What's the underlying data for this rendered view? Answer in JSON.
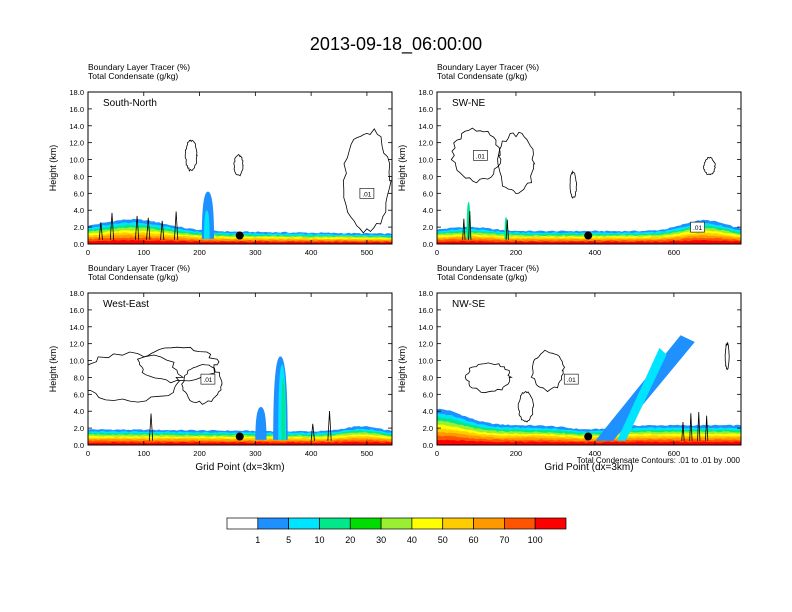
{
  "title": "2013-09-18_06:00:00",
  "colorbar": {
    "levels": [
      "1",
      "5",
      "10",
      "20",
      "30",
      "40",
      "50",
      "60",
      "70",
      "100"
    ],
    "colors": [
      "#ffffff",
      "#1e90ff",
      "#00e5ff",
      "#00e88a",
      "#00dd00",
      "#9bef33",
      "#ffff00",
      "#ffcc00",
      "#ff9900",
      "#ff5500",
      "#ff0000"
    ]
  },
  "contour_note": "Total Condensate Contours: .01 to .01 by .000",
  "chart_data": [
    {
      "type": "heatmap",
      "id": "sn",
      "label": "South-North",
      "header": [
        "Boundary Layer Tracer   (%)",
        "Total Condensate   (g/kg)"
      ],
      "ylabel": "Height (km)",
      "xlabel": "",
      "xlim": [
        0,
        545
      ],
      "ylim": [
        0,
        18
      ],
      "xticks": [
        "0",
        "100",
        "200",
        "300",
        "400",
        "500"
      ],
      "yticks": [
        "0.0",
        "2.0",
        "4.0",
        "6.0",
        "8.0",
        "10.0",
        "12.0",
        "14.0",
        "16.0",
        "18.0"
      ],
      "marker": [
        272,
        1.0
      ],
      "contour_labels": [
        {
          "text": ".01",
          "x": 500,
          "y": 6.0
        }
      ]
    },
    {
      "type": "heatmap",
      "id": "swne",
      "label": "SW-NE",
      "header": [
        "Boundary Layer Tracer   (%)",
        "Total Condensate   (g/kg)"
      ],
      "ylabel": "Height (km)",
      "xlabel": "",
      "xlim": [
        0,
        770
      ],
      "ylim": [
        0,
        18
      ],
      "xticks": [
        "0",
        "200",
        "400",
        "600"
      ],
      "yticks": [
        "0.0",
        "2.0",
        "4.0",
        "6.0",
        "8.0",
        "10.0",
        "12.0",
        "14.0",
        "16.0",
        "18.0"
      ],
      "marker": [
        383,
        1.0
      ],
      "contour_labels": [
        {
          "text": ".01",
          "x": 110,
          "y": 10.5
        },
        {
          "text": ".01",
          "x": 660,
          "y": 2.0
        }
      ]
    },
    {
      "type": "heatmap",
      "id": "we",
      "label": "West-East",
      "header": [
        "Boundary Layer Tracer   (%)",
        "Total Condensate   (g/kg)"
      ],
      "ylabel": "Height (km)",
      "xlabel": "Grid Point (dx=3km)",
      "xlim": [
        0,
        545
      ],
      "ylim": [
        0,
        18
      ],
      "xticks": [
        "0",
        "100",
        "200",
        "300",
        "400",
        "500"
      ],
      "yticks": [
        "0.0",
        "2.0",
        "4.0",
        "6.0",
        "8.0",
        "10.0",
        "12.0",
        "14.0",
        "16.0",
        "18.0"
      ],
      "marker": [
        272,
        1.0
      ],
      "contour_labels": [
        {
          "text": ".01",
          "x": 215,
          "y": 7.8
        }
      ]
    },
    {
      "type": "heatmap",
      "id": "nwse",
      "label": "NW-SE",
      "header": [
        "Boundary Layer Tracer   (%)",
        "Total Condensate   (g/kg)"
      ],
      "ylabel": "Height (km)",
      "xlabel": "Grid Point (dx=3km)",
      "xlim": [
        0,
        770
      ],
      "ylim": [
        0,
        18
      ],
      "xticks": [
        "0",
        "200",
        "400",
        "600"
      ],
      "yticks": [
        "0.0",
        "2.0",
        "4.0",
        "6.0",
        "8.0",
        "10.0",
        "12.0",
        "14.0",
        "16.0",
        "18.0"
      ],
      "marker": [
        383,
        1.0
      ],
      "contour_labels": [
        {
          "text": ".01",
          "x": 340,
          "y": 7.8
        }
      ]
    }
  ]
}
